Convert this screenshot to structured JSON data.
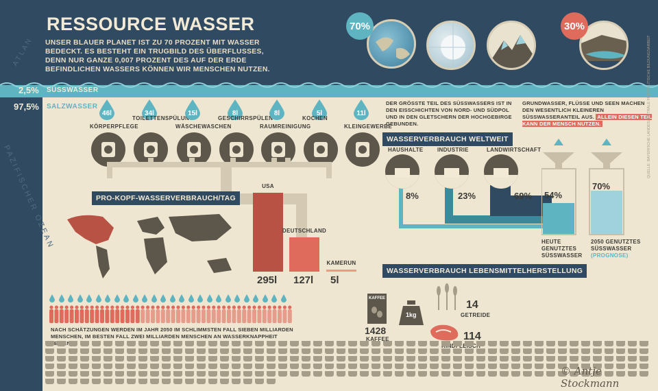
{
  "header": {
    "title": "RESSOURCE WASSER",
    "intro": "UNSER BLAUER PLANET IST ZU 70 PROZENT MIT WASSER BEDECKT. ES BESTEHT EIN TRUGBILD DES ÜBERFLUSSES, DENN NUR GANZE 0,007 PROZENT DES AUF DER ERDE BEFINDLICHEN WASSERS KÖNNEN WIR MENSCHEN NUTZEN.",
    "globe_pct_1": "70%",
    "globe_pct_2": "30%",
    "ocean_label": "PAZIFISCHER OZEAN",
    "atlantic_label": "ATLAN"
  },
  "water_split": {
    "fresh_pct": "2,5%",
    "fresh_label": "SÜSSWASSER",
    "salt_pct": "97,5%",
    "salt_label": "SALZWASSER"
  },
  "household_uses": [
    {
      "value": "46l",
      "label": "KÖRPERPFLEGE"
    },
    {
      "value": "34l",
      "label": "TOILETTENSPÜLUNG"
    },
    {
      "value": "15l",
      "label": "WÄSCHEWASCHEN"
    },
    {
      "value": "8l",
      "label": "GESCHIRRSPÜLEN"
    },
    {
      "value": "8l",
      "label": "RAUMREINIGUNG"
    },
    {
      "value": "5l",
      "label": "KOCHEN"
    },
    {
      "value": "11l",
      "label": "KLEINGEWERBE"
    }
  ],
  "glacier_note": "DER GRÖSSTE TEIL DES SÜSSWASSERS IST IN DEN EISSCHICHTEN VON NORD- UND SÜDPOL UND IN DEN GLETSCHERN DER HOCHGEBIRGE GEBUNDEN.",
  "ground_note": "GRUNDWASSER, FLÜSSE UND SEEN MACHEN DEN WESENTLICH KLEINEREN SÜSSWASSERANTEIL AUS.",
  "ground_note_highlight": "ALLEIN DIESEN TEIL KANN DER MENSCH NUTZEN.",
  "per_capita": {
    "title": "PRO-KOPF-WASSERVERBRAUCH/TAG",
    "bars": [
      {
        "label": "USA",
        "value": "295l",
        "amount": 295,
        "color": "#b85244"
      },
      {
        "label": "DEUTSCHLAND",
        "value": "127l",
        "amount": 127,
        "color": "#de6b5c"
      },
      {
        "label": "KAMERUN",
        "value": "5l",
        "amount": 5,
        "color": "#ec9a82"
      }
    ]
  },
  "population_note": "NACH SCHÄTZUNGEN WERDEN IM JAHR 2050 IM SCHLIMMSTEN FALL SIEBEN MILLIARDEN MENSCHEN, IM BESTEN FALL ZWEI MILLIARDEN MENSCHEN AN WASSERKNAPPHEIT LEIDEN.",
  "worldwide": {
    "title": "WASSERVERBRAUCH WELTWEIT",
    "sectors": [
      {
        "label": "HAUSHALTE",
        "value": "8%"
      },
      {
        "label": "INDUSTRIE",
        "value": "23%"
      },
      {
        "label": "LANDWIRTSCHAFT",
        "value": "69%"
      }
    ],
    "today_pct": "54%",
    "today_label": "HEUTE GENUTZTES SÜSSWASSER",
    "future_pct": "70%",
    "future_label": "2050 GENUTZTES SÜSSWASSER",
    "future_sub": "(PROGNOSE)"
  },
  "food": {
    "title": "WASSERVERBRAUCH LEBENSMITTELHERSTELLUNG",
    "coffee_tag": "KAFFEE",
    "coffee_value": "1428",
    "coffee_label": "KAFFEE",
    "weight_label": "1kg",
    "grain_value": "14",
    "grain_label": "GETREIDE",
    "beef_value": "114",
    "beef_label": "RINDFLEISCH"
  },
  "credit": "© Antje Stockmann",
  "side_source": "QUELLE: BAYERISCHE LANDESZENTRALE FÜR POLITISCHE BILDUNGSARBEIT",
  "colors": {
    "navy": "#304a62",
    "teal": "#5fb4c1",
    "cream": "#efe6d2",
    "red": "#b85244",
    "dark": "#5d564a"
  }
}
